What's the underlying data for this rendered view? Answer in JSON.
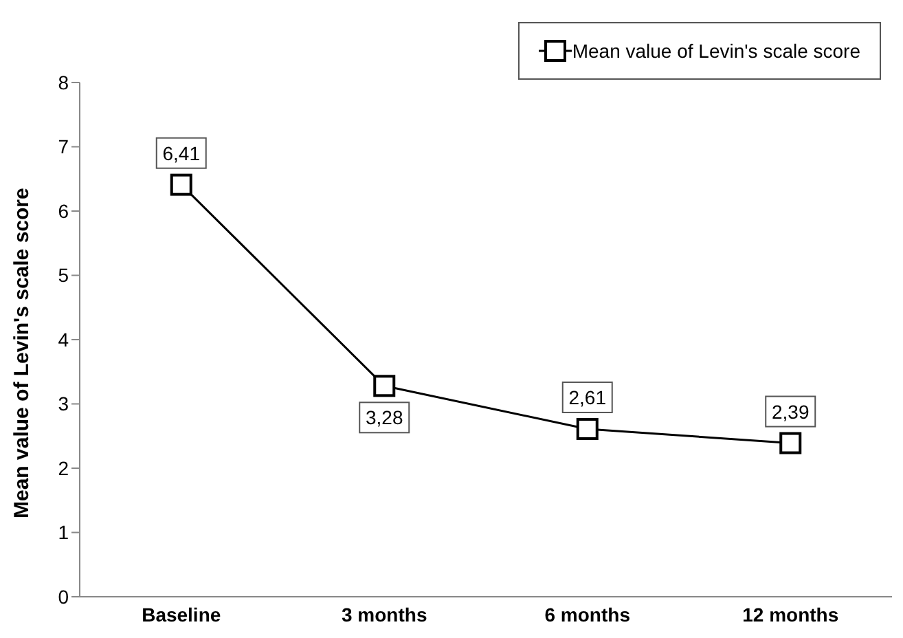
{
  "chart_data": {
    "type": "line",
    "ylabel": "Mean value of Levin's scale score",
    "categories": [
      "Baseline",
      "3 months",
      "6 months",
      "12 months"
    ],
    "series": [
      {
        "name": "Mean value of Levin's scale score",
        "color": "#000000",
        "values": [
          6.41,
          3.28,
          2.61,
          2.39
        ],
        "value_labels": [
          "6,41",
          "3,28",
          "2,61",
          "2,39"
        ]
      }
    ],
    "ylim": [
      0,
      8
    ],
    "yticks": [
      0,
      1,
      2,
      3,
      4,
      5,
      6,
      7,
      8
    ],
    "legend": "top right",
    "marker": "square",
    "line_style": "solid"
  }
}
